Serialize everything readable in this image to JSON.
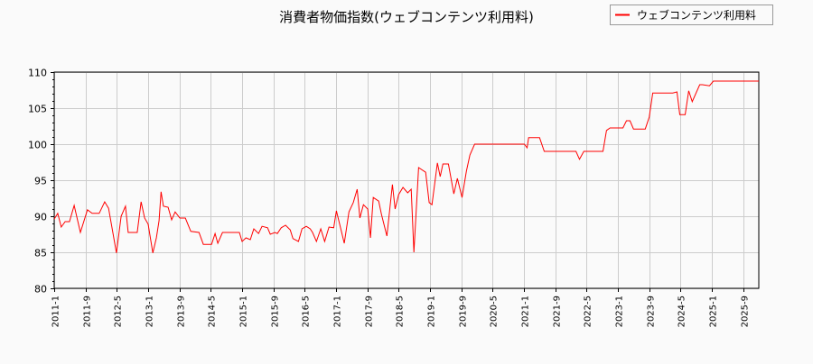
{
  "chart_data": {
    "type": "line",
    "title": "消費者物価指数(ウェブコンテンツ利用料)",
    "xlabel": "",
    "ylabel": "",
    "ylim": [
      80,
      110
    ],
    "yticks": [
      80,
      85,
      90,
      95,
      100,
      105,
      110
    ],
    "x_unit": "months since 2011-1",
    "xlim": [
      0,
      180
    ],
    "xticks": [
      0,
      8,
      16,
      24,
      32,
      40,
      48,
      56,
      64,
      72,
      80,
      88,
      96,
      104,
      112,
      120,
      128,
      136,
      144,
      152,
      160,
      168,
      176
    ],
    "xtick_labels": [
      "2011-1",
      "2011-9",
      "2012-5",
      "2013-1",
      "2013-9",
      "2014-5",
      "2015-1",
      "2015-9",
      "2016-5",
      "2017-1",
      "2017-9",
      "2018-5",
      "2019-1",
      "2019-9",
      "2020-5",
      "2021-1",
      "2021-9",
      "2022-5",
      "2023-1",
      "2023-9",
      "2024-5",
      "2025-1",
      "2025-9"
    ],
    "grid": true,
    "legend_position": "top-right",
    "series": [
      {
        "name": "ウェブコンテンツ利用料",
        "color": "#ff0000",
        "x": [
          0,
          0.9,
          1.8,
          2.8,
          3.9,
          5.1,
          6.7,
          8.5,
          9.7,
          11.5,
          12.9,
          13.9,
          15.9,
          17.1,
          18.2,
          18.9,
          21.2,
          22.2,
          23.1,
          24,
          25.2,
          26.1,
          26.8,
          27.3,
          27.9,
          29.1,
          30,
          30.9,
          32.1,
          33.5,
          34.9,
          37,
          38.1,
          40.2,
          41.1,
          41.8,
          43,
          47.3,
          48,
          49,
          50.1,
          51,
          52.2,
          53.1,
          54.5,
          55.2,
          56.4,
          57,
          58,
          59.1,
          60.3,
          61,
          62.4,
          63.3,
          64.4,
          65.4,
          66,
          67,
          68.1,
          69.1,
          70.2,
          71.4,
          72.1,
          73,
          74.1,
          75.3,
          76.4,
          77.4,
          78.1,
          79,
          80.1,
          80.8,
          81.5,
          82.9,
          83.6,
          85,
          86.4,
          87.1,
          88,
          89.1,
          90.3,
          91.2,
          91.9,
          93.1,
          94.9,
          95.8,
          96.5,
          97.9,
          98.6,
          99.3,
          100.7,
          102.1,
          103,
          104.2,
          105.3,
          106.2,
          107.4,
          120.1,
          120.8,
          121.2,
          124,
          125.2,
          133.3,
          134.2,
          135.3,
          140.2,
          141.1,
          142,
          145.3,
          146.2,
          147.1,
          148,
          151,
          152,
          152.9,
          158,
          159.1,
          159.8,
          161.2,
          162.1,
          163,
          164.9,
          165.6,
          167.4,
          168.4,
          180
        ],
        "values": [
          89.6,
          90.4,
          88.5,
          89.25,
          89.25,
          91.5,
          87.75,
          90.9,
          90.4,
          90.4,
          92,
          91.1,
          84.9,
          90,
          91.4,
          87.75,
          87.75,
          92,
          89.75,
          88.9,
          84.9,
          87,
          89.4,
          93.4,
          91.4,
          91.25,
          89.5,
          90.6,
          89.75,
          89.75,
          87.9,
          87.75,
          86.1,
          86.1,
          87.6,
          86.25,
          87.75,
          87.75,
          86.5,
          87,
          86.75,
          88.25,
          87.6,
          88.6,
          88.4,
          87.5,
          87.75,
          87.6,
          88.4,
          88.75,
          88.1,
          86.9,
          86.5,
          88.25,
          88.6,
          88.25,
          87.75,
          86.5,
          88.25,
          86.5,
          88.5,
          88.4,
          90.75,
          88.75,
          86.25,
          90.6,
          91.9,
          93.75,
          89.75,
          91.6,
          91,
          87,
          92.6,
          92.1,
          90.25,
          87.25,
          94.4,
          91,
          93,
          94,
          93.25,
          93.75,
          85,
          96.75,
          96.1,
          91.9,
          91.6,
          97.4,
          95.5,
          97.25,
          97.25,
          93.1,
          95.25,
          92.6,
          96.25,
          98.5,
          100,
          100,
          99.5,
          100.9,
          100.9,
          99,
          99,
          97.9,
          99,
          99,
          101.9,
          102.25,
          102.25,
          103.25,
          103.25,
          102.1,
          102.1,
          103.75,
          107.1,
          107.1,
          107.25,
          104.1,
          104.1,
          107.4,
          105.9,
          108.25,
          108.25,
          108.1,
          108.75,
          108.75
        ]
      }
    ]
  }
}
